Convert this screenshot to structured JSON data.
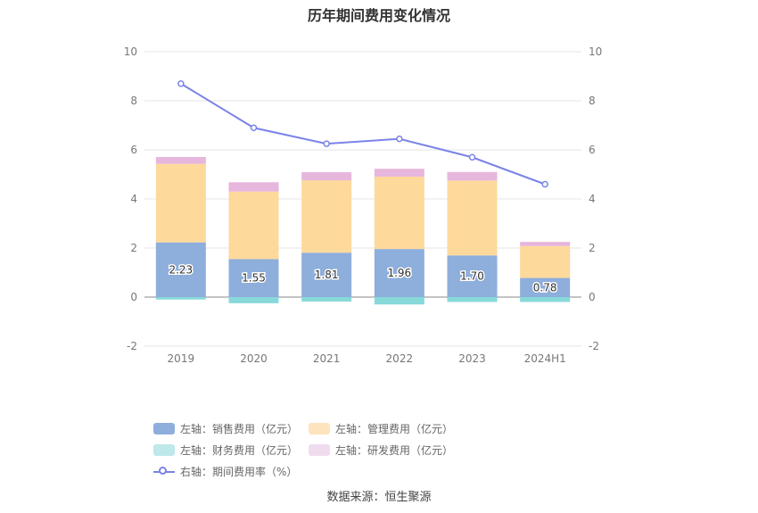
{
  "chart_data": {
    "type": "bar",
    "title": "历年期间费用变化情况",
    "categories": [
      "2019",
      "2020",
      "2021",
      "2022",
      "2023",
      "2024H1"
    ],
    "left_axis": {
      "ylim": [
        -2,
        10
      ],
      "ticks": [
        "-2",
        "0",
        "2",
        "4",
        "6",
        "8",
        "10"
      ]
    },
    "right_axis": {
      "ylim": [
        -2,
        10
      ],
      "ticks": [
        "-2",
        "0",
        "2",
        "4",
        "6",
        "8",
        "10"
      ]
    },
    "series": [
      {
        "name": "左轴：销售费用（亿元）",
        "type": "stacked-bar",
        "color": "#8eaedc",
        "values": [
          2.23,
          1.55,
          1.81,
          1.96,
          1.7,
          0.78
        ],
        "labels": [
          "2.23",
          "1.55",
          "1.81",
          "1.96",
          "1.70",
          "0.78"
        ]
      },
      {
        "name": "左轴：管理费用（亿元）",
        "type": "stacked-bar",
        "color": "#fdd99b",
        "values": [
          3.2,
          2.75,
          2.95,
          2.95,
          3.05,
          1.3
        ]
      },
      {
        "name": "左轴：财务费用（亿元）",
        "type": "stacked-bar",
        "color": "#88d9d9",
        "values": [
          -0.1,
          -0.25,
          -0.18,
          -0.3,
          -0.2,
          -0.2
        ]
      },
      {
        "name": "左轴：研发费用（亿元）",
        "type": "stacked-bar",
        "color": "#e7b6dc",
        "values": [
          0.28,
          0.38,
          0.33,
          0.32,
          0.35,
          0.17
        ]
      },
      {
        "name": "右轴：期间费用率（%）",
        "type": "line",
        "color": "#7b83e8",
        "values": [
          8.7,
          6.9,
          6.25,
          6.45,
          5.7,
          4.6
        ]
      }
    ],
    "legend_position": "bottom",
    "grid": true
  },
  "legend": [
    {
      "label": "左轴：销售费用（亿元）",
      "color": "#8eaedc",
      "kind": "bar"
    },
    {
      "label": "左轴：管理费用（亿元）",
      "color": "#fde4bd",
      "kind": "bar"
    },
    {
      "label": "左轴：财务费用（亿元）",
      "color": "#bfe8ea",
      "kind": "bar"
    },
    {
      "label": "左轴：研发费用（亿元）",
      "color": "#f1dcef",
      "kind": "bar"
    },
    {
      "label": "右轴：期间费用率（%）",
      "color": "#7b83e8",
      "kind": "line"
    }
  ],
  "source": "数据来源：恒生聚源"
}
